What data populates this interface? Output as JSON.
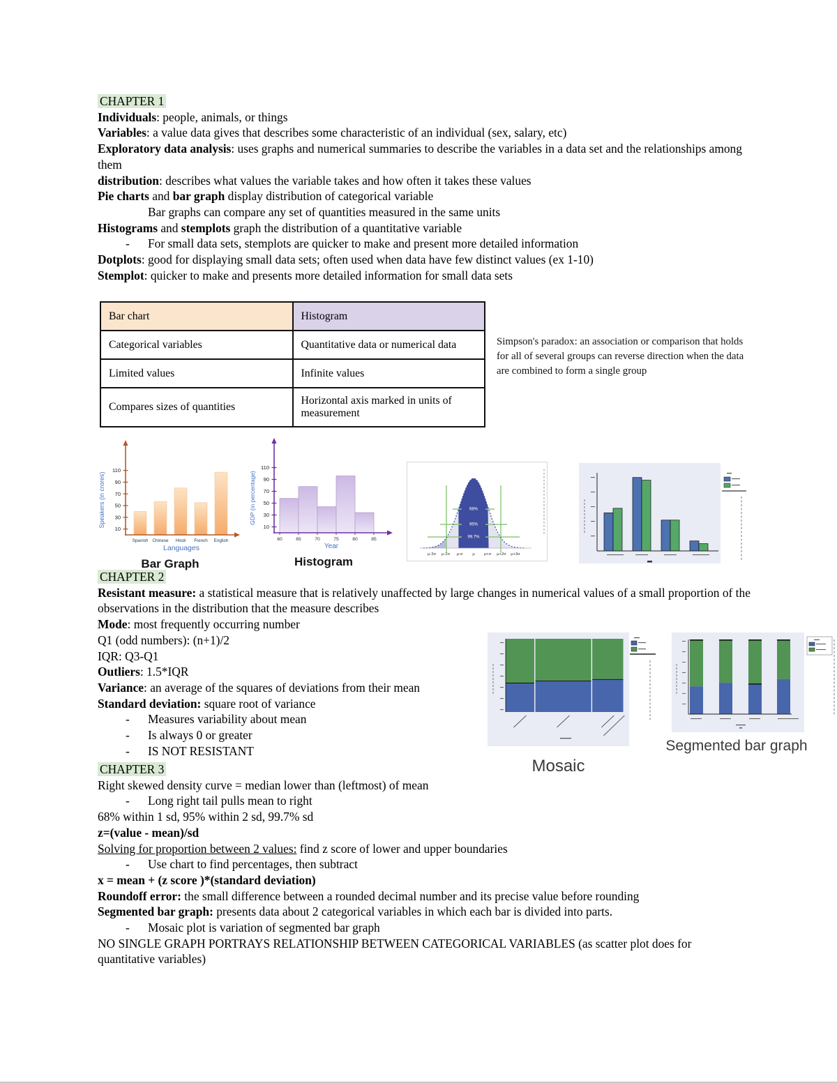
{
  "chapters": [
    {
      "heading": "CHAPTER 1",
      "lines": [
        {
          "segments": [
            {
              "t": "Individuals",
              "b": 1
            },
            {
              "t": ": people, animals, or things"
            }
          ]
        },
        {
          "segments": [
            {
              "t": "Variables",
              "b": 1
            },
            {
              "t": ": a value data gives that describes some characteristic of an individual (sex, salary, etc)"
            }
          ]
        },
        {
          "segments": [
            {
              "t": "Exploratory data analysis",
              "b": 1
            },
            {
              "t": ": uses graphs and numerical summaries to describe the variables in a data set and the relationships among them"
            }
          ]
        },
        {
          "segments": [
            {
              "t": "distribution",
              "b": 1
            },
            {
              "t": ": describes what values the variable takes and how often it takes these values"
            }
          ]
        },
        {
          "segments": [
            {
              "t": "Pie charts",
              "b": 1
            },
            {
              "t": " and "
            },
            {
              "t": "bar graph",
              "b": 1
            },
            {
              "t": " display distribution of categorical variable"
            }
          ]
        },
        {
          "indent": 1,
          "segments": [
            {
              "t": "Bar graphs can compare any set of quantities measured in the same units"
            }
          ]
        },
        {
          "segments": [
            {
              "t": "Histograms",
              "b": 1
            },
            {
              "t": " and "
            },
            {
              "t": "stemplots",
              "b": 1
            },
            {
              "t": " graph the distribution of a quantitative variable"
            }
          ]
        },
        {
          "bullet": 1,
          "segments": [
            {
              "t": "For small data sets, stemplots are quicker to make and present more detailed information"
            }
          ]
        },
        {
          "segments": [
            {
              "t": "Dotplots",
              "b": 1
            },
            {
              "t": ": good for displaying small data sets; often used when data have few distinct values (ex 1-10)"
            }
          ]
        },
        {
          "segments": [
            {
              "t": "Stemplot",
              "b": 1
            },
            {
              "t": ": quicker to make and presents more detailed information for small data sets"
            }
          ]
        }
      ]
    },
    {
      "heading": "CHAPTER 2",
      "lines": [
        {
          "segments": [
            {
              "t": "Resistant measure:",
              "b": 1
            },
            {
              "t": " a statistical measure that is relatively unaffected by large changes in numerical values of a small proportion of the observations in the distribution that the measure describes"
            }
          ]
        },
        {
          "segments": [
            {
              "t": "Mode",
              "b": 1
            },
            {
              "t": ": most frequently occurring number"
            }
          ]
        },
        {
          "segments": [
            {
              "t": "Q1 (odd numbers): (n+1)/2"
            }
          ]
        },
        {
          "segments": [
            {
              "t": "IQR: Q3-Q1"
            }
          ]
        },
        {
          "segments": [
            {
              "t": "Outliers",
              "b": 1
            },
            {
              "t": ": 1.5*IQR"
            }
          ]
        },
        {
          "segments": [
            {
              "t": "Variance",
              "b": 1
            },
            {
              "t": ": an average of the squares of deviations from their mean"
            }
          ]
        },
        {
          "segments": [
            {
              "t": "Standard deviation:",
              "b": 1
            },
            {
              "t": " square root of variance"
            }
          ]
        },
        {
          "bullet": 1,
          "segments": [
            {
              "t": "Measures variability about mean"
            }
          ]
        },
        {
          "bullet": 1,
          "segments": [
            {
              "t": "Is always 0 or greater"
            }
          ]
        },
        {
          "bullet": 1,
          "segments": [
            {
              "t": "IS NOT RESISTANT"
            }
          ]
        }
      ]
    },
    {
      "heading": "CHAPTER 3",
      "lines": [
        {
          "segments": [
            {
              "t": "Right skewed density curve = median lower than (leftmost) of mean"
            }
          ]
        },
        {
          "bullet": 1,
          "segments": [
            {
              "t": "Long right tail pulls mean to right"
            }
          ]
        },
        {
          "segments": [
            {
              "t": "68% within 1 sd, 95% within 2 sd, 99.7% sd"
            }
          ]
        },
        {
          "segments": [
            {
              "t": "z=(value - mean)/sd",
              "b": 1
            }
          ]
        },
        {
          "segments": [
            {
              "t": "Solving for proportion between 2 values:",
              "u": 1
            },
            {
              "t": " find z score of lower and upper boundaries"
            }
          ]
        },
        {
          "bullet": 1,
          "segments": [
            {
              "t": "Use chart to find percentages, then subtract"
            }
          ]
        },
        {
          "segments": [
            {
              "t": "x = mean + (z score )*(standard deviation)",
              "b": 1
            }
          ]
        },
        {
          "segments": [
            {
              "t": "Roundoff error:",
              "b": 1
            },
            {
              "t": " the small difference between a rounded decimal number and its precise value before rounding"
            }
          ]
        },
        {
          "segments": [
            {
              "t": "Segmented bar graph:",
              "b": 1
            },
            {
              "t": " presents data about 2 categorical variables in which each bar is divided into parts."
            }
          ]
        },
        {
          "bullet": 1,
          "segments": [
            {
              "t": "Mosaic plot is variation of segmented bar graph"
            }
          ]
        },
        {
          "segments": [
            {
              "t": "NO SINGLE GRAPH PORTRAYS RELATIONSHIP BETWEEN CATEGORICAL VARIABLES (as scatter plot does for quantitative variables)"
            }
          ]
        }
      ]
    }
  ],
  "comparison_table": {
    "headers": [
      "Bar chart",
      "Histogram"
    ],
    "rows": [
      [
        "Categorical variables",
        "Quantitative data or numerical data"
      ],
      [
        "Limited values",
        "Infinite values"
      ],
      [
        "Compares sizes of quantities",
        "Horizontal axis marked in units of measurement"
      ]
    ],
    "header_colors": [
      "#fce5cd",
      "#d9d2e9"
    ]
  },
  "simpsons_paradox": "Simpson's paradox: an association or comparison that holds for all of several groups can reverse direction when the data are combined to form a single group",
  "chart_data": [
    {
      "id": "bar-graph",
      "type": "bar",
      "caption": "Bar Graph",
      "categories": [
        "Spanish",
        "Chinese",
        "Hindi",
        "French",
        "English"
      ],
      "values": [
        40,
        57,
        80,
        55,
        107
      ],
      "xlabel": "Languages",
      "ylabel": "Speakers (in crores)",
      "yticks": [
        10,
        30,
        50,
        70,
        90,
        110
      ],
      "ylim": [
        0,
        120
      ],
      "bar_gradient": [
        "#fde3c4",
        "#f5ab6b"
      ],
      "axis_color": "#b35a2a",
      "label_color": "#4472c4"
    },
    {
      "id": "histogram",
      "type": "histogram",
      "caption": "Histogram",
      "bin_edges": [
        60,
        65,
        70,
        75,
        80,
        85
      ],
      "values": [
        58,
        78,
        44,
        96,
        34
      ],
      "xlabel": "Year",
      "ylabel": "GDP (in percentage)",
      "yticks": [
        10,
        30,
        50,
        70,
        90,
        110
      ],
      "ylim": [
        0,
        120
      ],
      "bar_gradient": [
        "#cdb9e4",
        "#ece6f6"
      ],
      "axis_color": "#7030a0",
      "label_color": "#4472c4"
    },
    {
      "id": "normal-distribution-empirical-rule",
      "type": "area",
      "caption": "",
      "region_labels": [
        "68%",
        "95%",
        "99.7%"
      ],
      "xticklabels": [
        "μ-3σ",
        "μ-2σ",
        "μ-σ",
        "μ",
        "μ+σ",
        "μ+2σ",
        "μ+3σ"
      ],
      "curve_color": "#3e4d9f",
      "fill_color": "#e4e4f1",
      "tail_color": "#b7bcdc",
      "line_color": "#8dc87e"
    },
    {
      "id": "grouped-bar",
      "type": "bar",
      "caption": "",
      "groups": 4,
      "ylim": [
        0,
        100
      ],
      "ticks_illegible": true,
      "series": [
        {
          "color": "#4c72b0",
          "values": [
            42,
            81,
            34,
            11
          ]
        },
        {
          "color": "#55a868",
          "values": [
            47,
            78,
            34,
            8
          ]
        }
      ],
      "legend": {
        "colors": [
          "#4c72b0",
          "#55a868"
        ],
        "labels_illegible": true
      },
      "background": "#e9ebf5"
    },
    {
      "id": "mosaic",
      "type": "mosaic",
      "caption": "Mosaic",
      "column_widths": [
        0.25,
        0.48,
        0.27
      ],
      "bottom_fraction": [
        0.39,
        0.42,
        0.44
      ],
      "colors": {
        "bottom": "#4766ac",
        "top": "#519454"
      },
      "legend": {
        "colors": [
          "#4766ac",
          "#519454"
        ],
        "labels_illegible": true
      },
      "background": "#e9ebf5",
      "labels_illegible": true
    },
    {
      "id": "segmented-bar",
      "type": "stacked_bar",
      "caption": "Segmented bar graph",
      "bars": 4,
      "bottom_fraction": [
        0.37,
        0.42,
        0.4,
        0.47
      ],
      "colors": {
        "bottom": "#4766ac",
        "top": "#519454"
      },
      "legend": {
        "colors": [
          "#4766ac",
          "#519454"
        ],
        "labels_illegible": true
      },
      "background": "#e9ebf5",
      "labels_illegible": true
    }
  ]
}
